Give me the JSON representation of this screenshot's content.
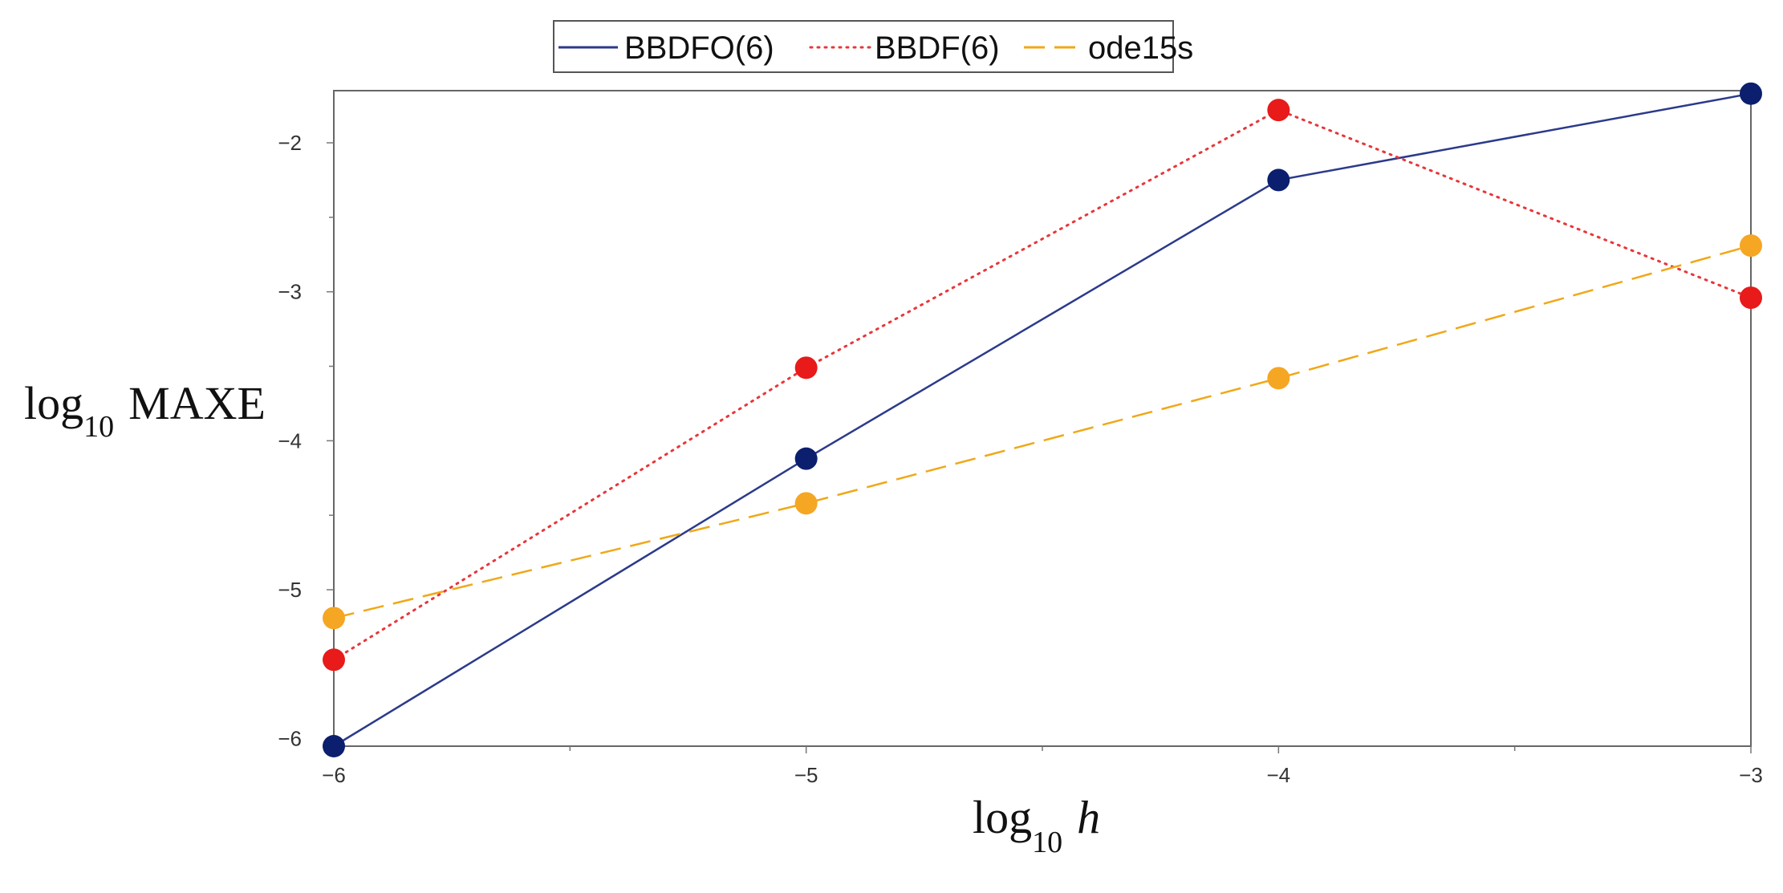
{
  "chart_data": {
    "type": "line",
    "title": "",
    "xlabel": {
      "main": "log",
      "sub": "10",
      "var": "h"
    },
    "ylabel": {
      "main": "log",
      "sub": "10",
      "rest": "MAXE"
    },
    "xlim": [
      -6,
      -3
    ],
    "ylim": [
      -6.05,
      -1.65
    ],
    "x_ticks": [
      -6,
      -5,
      -4,
      -3
    ],
    "x_tick_labels": [
      "−6",
      "−5",
      "−4",
      "−3"
    ],
    "y_ticks": [
      -2,
      -3,
      -4,
      -5,
      -6
    ],
    "y_tick_labels": [
      "−2",
      "−3",
      "−4",
      "−5",
      "−6"
    ],
    "grid": false,
    "legend_position": "top",
    "x": [
      -6,
      -5,
      -4,
      -3
    ],
    "series": [
      {
        "name": "BBDFO(6)",
        "values": [
          -6.05,
          -4.12,
          -2.25,
          -1.67
        ],
        "line_color": "#2b3a8a",
        "marker_color": "#0b1f6e",
        "dash": "none"
      },
      {
        "name": "BBDF(6)",
        "values": [
          -5.47,
          -3.51,
          -1.78,
          -3.04
        ],
        "line_color": "#e8363a",
        "marker_color": "#e81a1a",
        "dash": "dotted"
      },
      {
        "name": "ode15s",
        "values": [
          -5.19,
          -4.42,
          -3.58,
          -2.69
        ],
        "line_color": "#f0a818",
        "marker_color": "#f5a623",
        "dash": "dashed"
      }
    ]
  }
}
